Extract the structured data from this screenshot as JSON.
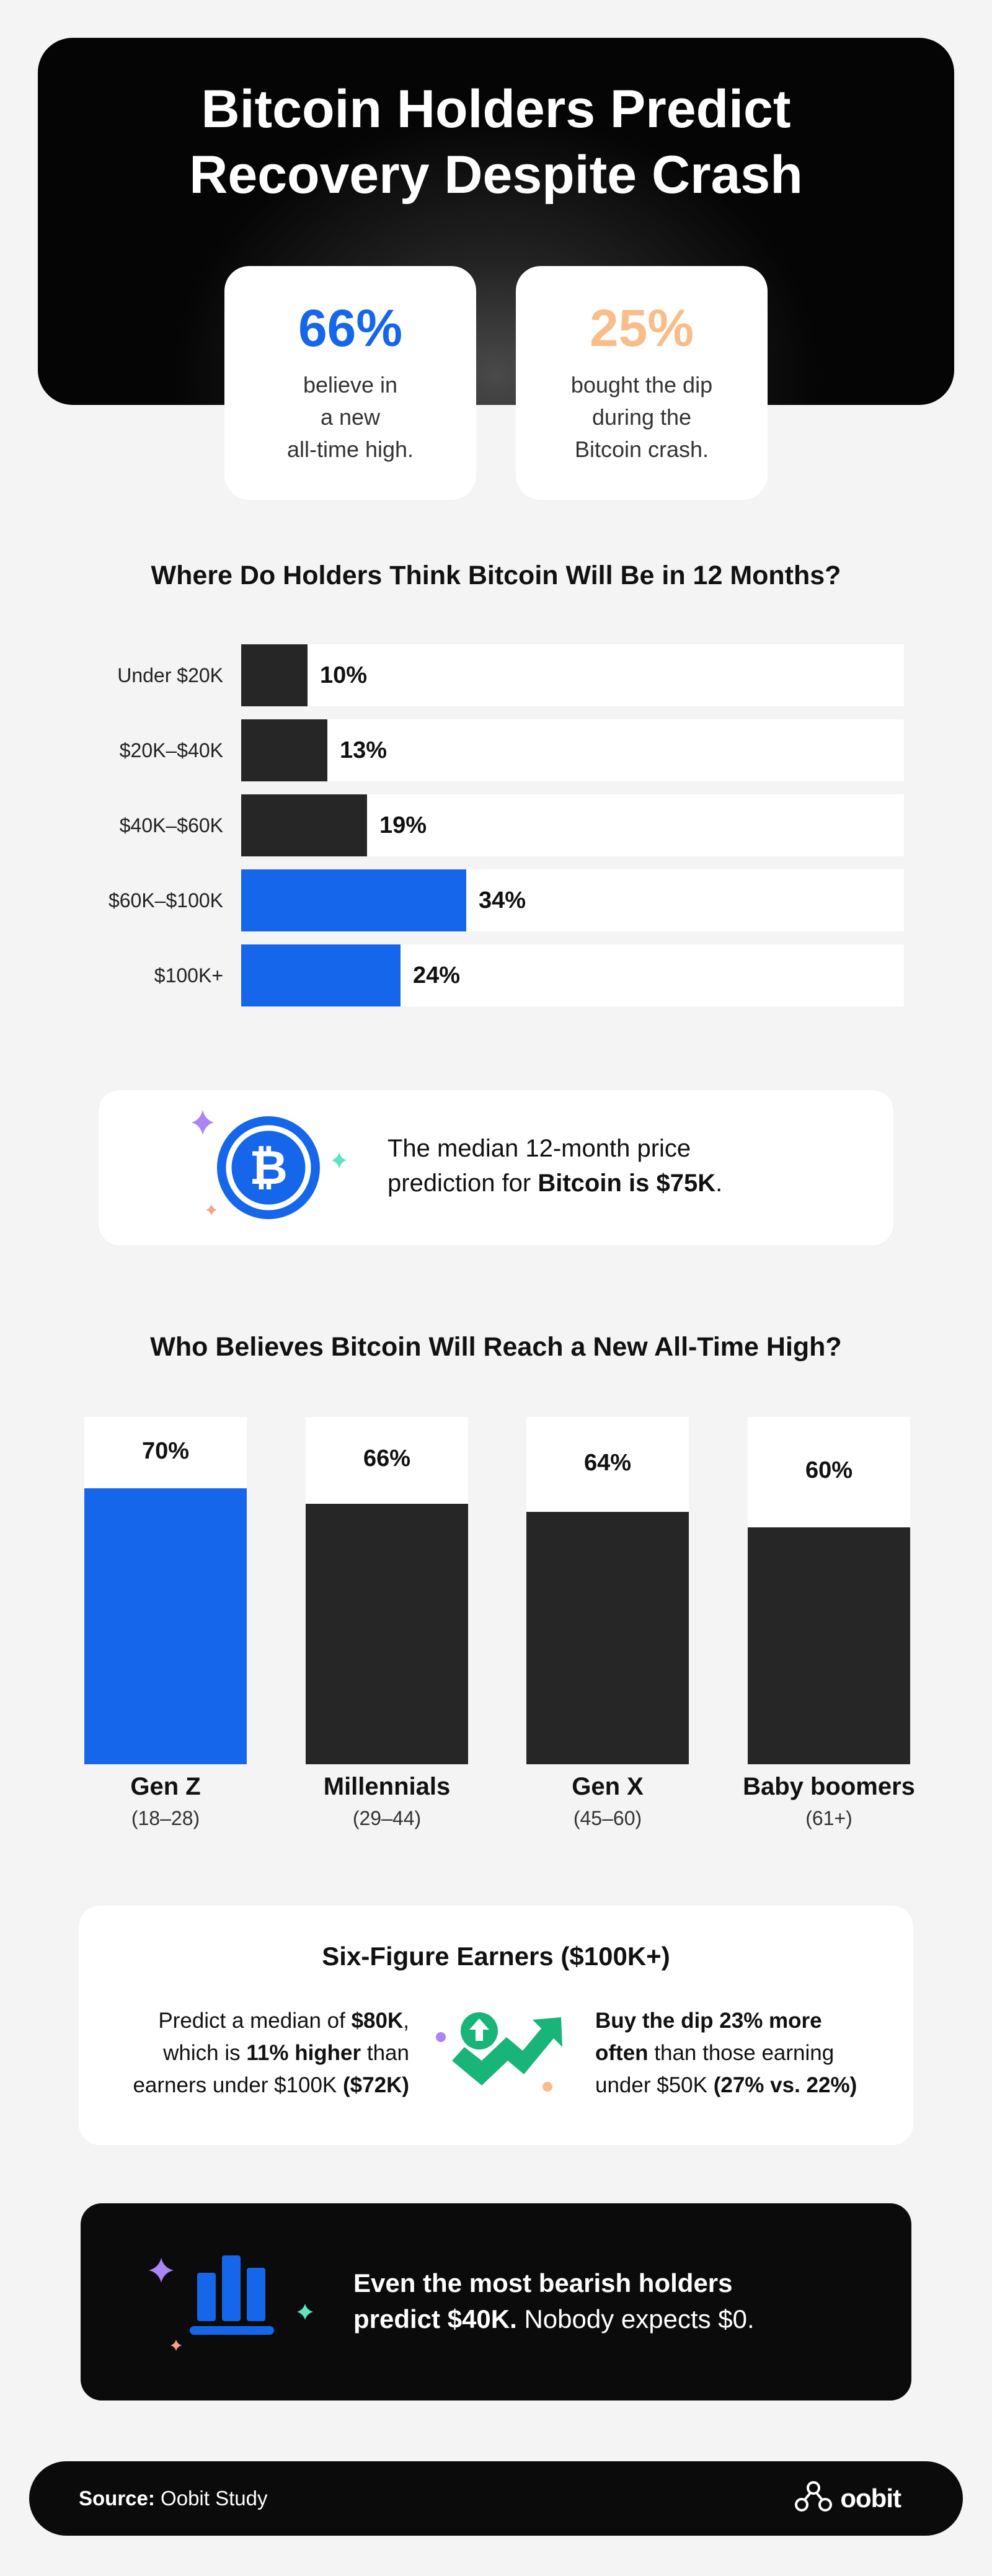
{
  "hero": {
    "title_line1": "Bitcoin Holders Predict",
    "title_line2": "Recovery Despite Crash",
    "stats": [
      {
        "value": "66%",
        "line1": "believe in",
        "line2": "a new",
        "line3": "all-time high.",
        "color": "#1566ea"
      },
      {
        "value": "25%",
        "line1": "bought the dip",
        "line2": "during the",
        "line3": "Bitcoin crash.",
        "color": "#f9bd8a"
      }
    ]
  },
  "colors": {
    "blue": "#1566ea",
    "dark": "#262626",
    "mint": "#5fe3c0",
    "purple": "#a985f5",
    "peach": "#f9bd8a",
    "green": "#18b478"
  },
  "chart_data": [
    {
      "type": "bar",
      "orientation": "horizontal",
      "title": "Where Do Holders Think Bitcoin Will Be in 12 Months?",
      "categories": [
        "Under $20K",
        "$20K–$40K",
        "$40K–$60K",
        "$60K–$100K",
        "$100K+"
      ],
      "values": [
        10,
        13,
        19,
        34,
        24
      ],
      "value_labels": [
        "10%",
        "13%",
        "19%",
        "34%",
        "24%"
      ],
      "highlight": [
        false,
        false,
        false,
        true,
        true
      ],
      "xlim": [
        0,
        100
      ],
      "unit": "%"
    },
    {
      "type": "bar",
      "orientation": "vertical",
      "title": "Who Believes Bitcoin Will Reach a New All-Time High?",
      "categories": [
        "Gen Z",
        "Millennials",
        "Gen X",
        "Baby boomers"
      ],
      "subcategories": [
        "(18–28)",
        "(29–44)",
        "(45–60)",
        "(61+)"
      ],
      "values": [
        70,
        66,
        64,
        60
      ],
      "value_labels": [
        "70%",
        "66%",
        "64%",
        "60%"
      ],
      "highlight": [
        true,
        false,
        false,
        false
      ],
      "ylim": [
        0,
        88
      ],
      "unit": "%"
    }
  ],
  "median": {
    "icon": "bitcoin-icon",
    "line1": "The median 12-month price",
    "line2_prefix": "prediction for ",
    "line2_bold": "Bitcoin is $75K",
    "line2_suffix": "."
  },
  "earners": {
    "title": "Six-Figure Earners ($100K+)",
    "left": {
      "l1_prefix": "Predict a median of ",
      "l1_bold": "$80K",
      "l1_suffix": ",",
      "l2_prefix": "which is ",
      "l2_bold": "11% higher",
      "l2_suffix": " than",
      "l3_prefix": "earners under $100K ",
      "l3_bold": "($72K)"
    },
    "right": {
      "l1_bold": "Buy the dip 23% more",
      "l2_bold": "often",
      "l2_suffix": " than those earning",
      "l3_prefix": "under $50K ",
      "l3_bold": "(27% vs. 22%)"
    },
    "icon": "trend-up-icon"
  },
  "bearish": {
    "icon": "bar-chart-icon",
    "line1": "Even the most bearish holders",
    "line2_bold": "predict $40K.",
    "line2_suffix": " Nobody expects $0."
  },
  "footer": {
    "source_label": "Source:",
    "source_value": " Oobit Study",
    "brand": "oobit",
    "brand_icon": "oobit-logo-icon"
  }
}
